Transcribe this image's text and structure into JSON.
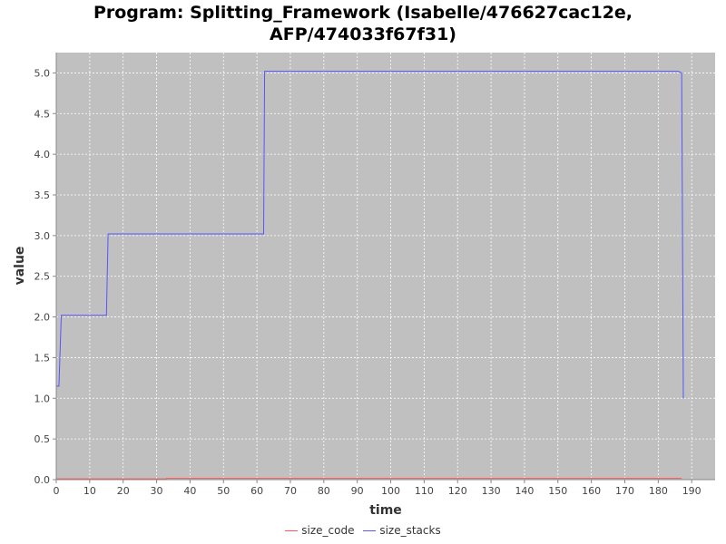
{
  "chart_data": {
    "type": "line",
    "title_line1": "Program: Splitting_Framework (Isabelle/476627cac12e,",
    "title_line2": "AFP/474033f67f31)",
    "xlabel": "time",
    "ylabel": "value",
    "xlim": [
      0,
      197
    ],
    "ylim": [
      0,
      5.25
    ],
    "x_ticks": [
      0,
      10,
      20,
      30,
      40,
      50,
      60,
      70,
      80,
      90,
      100,
      110,
      120,
      130,
      140,
      150,
      160,
      170,
      180,
      190
    ],
    "y_ticks": [
      "0.0",
      "0.5",
      "1.0",
      "1.5",
      "2.0",
      "2.5",
      "3.0",
      "3.5",
      "4.0",
      "4.5",
      "5.0"
    ],
    "grid": true,
    "legend_position": "bottom",
    "series": [
      {
        "name": "size_code",
        "color": "#ff5555",
        "points": [
          [
            0,
            0.01
          ],
          [
            33,
            0.01
          ],
          [
            33,
            0.015
          ],
          [
            187,
            0.015
          ]
        ]
      },
      {
        "name": "size_stacks",
        "color": "#5555ff",
        "points": [
          [
            0,
            1.15
          ],
          [
            0.8,
            1.15
          ],
          [
            1.5,
            2.02
          ],
          [
            15,
            2.02
          ],
          [
            15.5,
            3.02
          ],
          [
            62,
            3.02
          ],
          [
            62.3,
            5.02
          ],
          [
            186,
            5.02
          ],
          [
            187,
            5.0
          ],
          [
            187.5,
            1.0
          ]
        ]
      }
    ]
  }
}
